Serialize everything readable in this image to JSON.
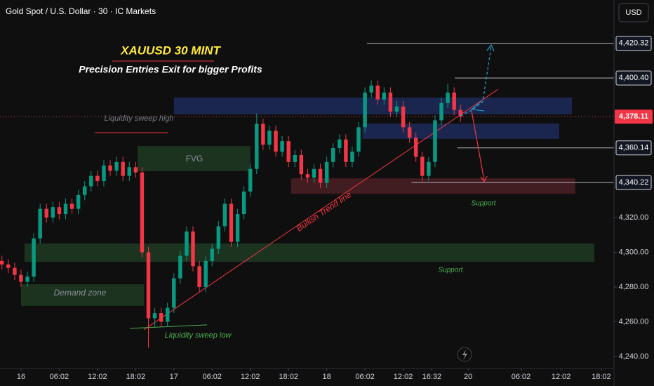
{
  "chart_data": {
    "type": "candlestick",
    "title": "Gold Spot / U.S. Dollar · 30 · IC Markets",
    "currency": "USD",
    "heading": "XAUUSD 30 MINT",
    "subheading": "Precision Entries Exit for bigger Profits",
    "up_color": "#089981",
    "down_color": "#f23645",
    "xlim": [
      -3.3,
      93.1
    ],
    "ylim": [
      4233.1,
      4445.3
    ],
    "grid": false,
    "xticks": [
      {
        "value": 0,
        "label": "16"
      },
      {
        "value": 6,
        "label": "06:02"
      },
      {
        "value": 12,
        "label": "12:02"
      },
      {
        "value": 18,
        "label": "18:02"
      },
      {
        "value": 24,
        "label": "17"
      },
      {
        "value": 30,
        "label": "06:02"
      },
      {
        "value": 36,
        "label": "12:02"
      },
      {
        "value": 42,
        "label": "18:02"
      },
      {
        "value": 48,
        "label": "18"
      },
      {
        "value": 54,
        "label": "06:02"
      },
      {
        "value": 60,
        "label": "12:02"
      },
      {
        "value": 64.5,
        "label": "16:32"
      },
      {
        "value": 70.2,
        "label": "20"
      },
      {
        "value": 78.5,
        "label": "06:02"
      },
      {
        "value": 84.8,
        "label": "12:02"
      },
      {
        "value": 91.1,
        "label": "18:02"
      }
    ],
    "yticks": [
      {
        "value": 4240,
        "label": "4,240.00"
      },
      {
        "value": 4260,
        "label": "4,260.00"
      },
      {
        "value": 4280,
        "label": "4,280.00"
      },
      {
        "value": 4300,
        "label": "4,300.00"
      },
      {
        "value": 4320,
        "label": "4,320.00"
      }
    ],
    "levels": [
      {
        "value": 4420.32,
        "label": "4,420.32",
        "from": 54.3
      },
      {
        "value": 4400.4,
        "label": "4,400.40",
        "from": 68.1
      },
      {
        "value": 4360.14,
        "label": "4,360.14",
        "from": 68.5
      },
      {
        "value": 4340.22,
        "label": "4,340.22",
        "from": 61.3
      }
    ],
    "last_price": {
      "value": 4378.11,
      "label": "4,378.11"
    },
    "x": [
      -3,
      -2,
      -1,
      0,
      1,
      2,
      3,
      4,
      5,
      6,
      7,
      8,
      9,
      10,
      11,
      12,
      13,
      14,
      15,
      16,
      17,
      18,
      19,
      20,
      21,
      22,
      23,
      24,
      25,
      26,
      27,
      28,
      29,
      30,
      31,
      32,
      33,
      34,
      35,
      36,
      37,
      38,
      39,
      40,
      41,
      42,
      43,
      44,
      45,
      46,
      47,
      48,
      49,
      50,
      51,
      52,
      53,
      54,
      55,
      56,
      57,
      58,
      59,
      60,
      61,
      62,
      63,
      64,
      65,
      66,
      67,
      68,
      69
    ],
    "open": [
      4295,
      4293,
      4291,
      4287,
      4283,
      4286,
      4308,
      4325,
      4320,
      4326,
      4322,
      4328,
      4325,
      4333,
      4338,
      4344,
      4341,
      4350,
      4347,
      4352,
      4344,
      4349,
      4346,
      4300,
      4262,
      4265,
      4260,
      4268,
      4285,
      4298,
      4312,
      4292,
      4280,
      4295,
      4302,
      4315,
      4328,
      4306,
      4322,
      4335,
      4348,
      4374,
      4362,
      4370,
      4358,
      4364,
      4352,
      4356,
      4345,
      4343,
      4348,
      4340,
      4352,
      4360,
      4365,
      4352,
      4358,
      4372,
      4392,
      4396,
      4388,
      4392,
      4381,
      4384,
      4372,
      4366,
      4355,
      4344,
      4352,
      4376,
      4386,
      4392,
      4382
    ],
    "high": [
      4298,
      4296,
      4294,
      4290,
      4289,
      4311,
      4328,
      4328,
      4329,
      4329,
      4331,
      4331,
      4336,
      4341,
      4347,
      4347,
      4353,
      4353,
      4355,
      4355,
      4352,
      4352,
      4349,
      4303,
      4268,
      4268,
      4271,
      4288,
      4301,
      4315,
      4315,
      4295,
      4298,
      4305,
      4318,
      4331,
      4331,
      4325,
      4338,
      4351,
      4380,
      4377,
      4373,
      4373,
      4367,
      4367,
      4359,
      4359,
      4348,
      4351,
      4351,
      4355,
      4363,
      4368,
      4368,
      4361,
      4375,
      4395,
      4399,
      4399,
      4395,
      4395,
      4387,
      4387,
      4375,
      4369,
      4358,
      4355,
      4379,
      4389,
      4397,
      4395,
      4385
    ],
    "low": [
      4290,
      4288,
      4284,
      4280,
      4280,
      4283,
      4305,
      4317,
      4317,
      4319,
      4319,
      4322,
      4322,
      4330,
      4335,
      4338,
      4338,
      4344,
      4344,
      4341,
      4341,
      4343,
      4297,
      4245,
      4257,
      4257,
      4257,
      4265,
      4282,
      4295,
      4289,
      4277,
      4277,
      4292,
      4299,
      4312,
      4303,
      4303,
      4319,
      4332,
      4345,
      4359,
      4359,
      4355,
      4355,
      4349,
      4349,
      4342,
      4340,
      4340,
      4337,
      4337,
      4349,
      4357,
      4349,
      4349,
      4355,
      4369,
      4389,
      4385,
      4385,
      4378,
      4378,
      4369,
      4363,
      4352,
      4341,
      4341,
      4349,
      4373,
      4383,
      4379,
      4375
    ],
    "close": [
      4293,
      4291,
      4287,
      4283,
      4286,
      4308,
      4325,
      4320,
      4326,
      4322,
      4328,
      4325,
      4333,
      4338,
      4344,
      4341,
      4350,
      4347,
      4352,
      4344,
      4349,
      4346,
      4300,
      4262,
      4265,
      4260,
      4268,
      4285,
      4298,
      4312,
      4292,
      4280,
      4295,
      4302,
      4315,
      4328,
      4306,
      4322,
      4335,
      4348,
      4374,
      4362,
      4370,
      4358,
      4364,
      4352,
      4356,
      4345,
      4343,
      4348,
      4340,
      4352,
      4360,
      4365,
      4352,
      4358,
      4372,
      4392,
      4396,
      4388,
      4392,
      4381,
      4384,
      4372,
      4366,
      4355,
      4344,
      4352,
      4376,
      4386,
      4392,
      4382,
      4378.11
    ],
    "zones": [
      {
        "x": [
          24,
          86.5
        ],
        "y": [
          4379.4,
          4389.1
        ],
        "color": "#1d2a5a"
      },
      {
        "x": [
          53.6,
          84.5
        ],
        "y": [
          4365.3,
          4374.1
        ],
        "color": "#1d2a5a"
      },
      {
        "x": [
          42.4,
          87
        ],
        "y": [
          4333.7,
          4342.6
        ],
        "color": "#4a1e25",
        "label": "Support"
      },
      {
        "x": [
          18.3,
          36
        ],
        "y": [
          4346.7,
          4361.2
        ],
        "color": "#1e3a22",
        "label": "FVG"
      },
      {
        "x": [
          0.55,
          90
        ],
        "y": [
          4294.5,
          4305.1
        ],
        "color": "#1e3a22",
        "label": "Support"
      },
      {
        "x": [
          0,
          19.3
        ],
        "y": [
          4269.1,
          4281.6
        ],
        "color": "#1e3a22",
        "label": "Demand zone"
      }
    ],
    "lines": [
      {
        "x": [
          19.3,
          74.9
        ],
        "y": [
          4255.4,
          4393.9
        ],
        "color": "#f23645",
        "label": "Bullish Trend line"
      },
      {
        "x": [
          11.6,
          23.1
        ],
        "y": [
          4368.9,
          4368.9
        ],
        "color": "#f23645",
        "label": "Liquidity sweep high"
      },
      {
        "x": [
          17.1,
          29.2
        ],
        "y": [
          4256.2,
          4258.2
        ],
        "color": "#4caf50",
        "label": "Liquidity sweep low"
      }
    ]
  }
}
